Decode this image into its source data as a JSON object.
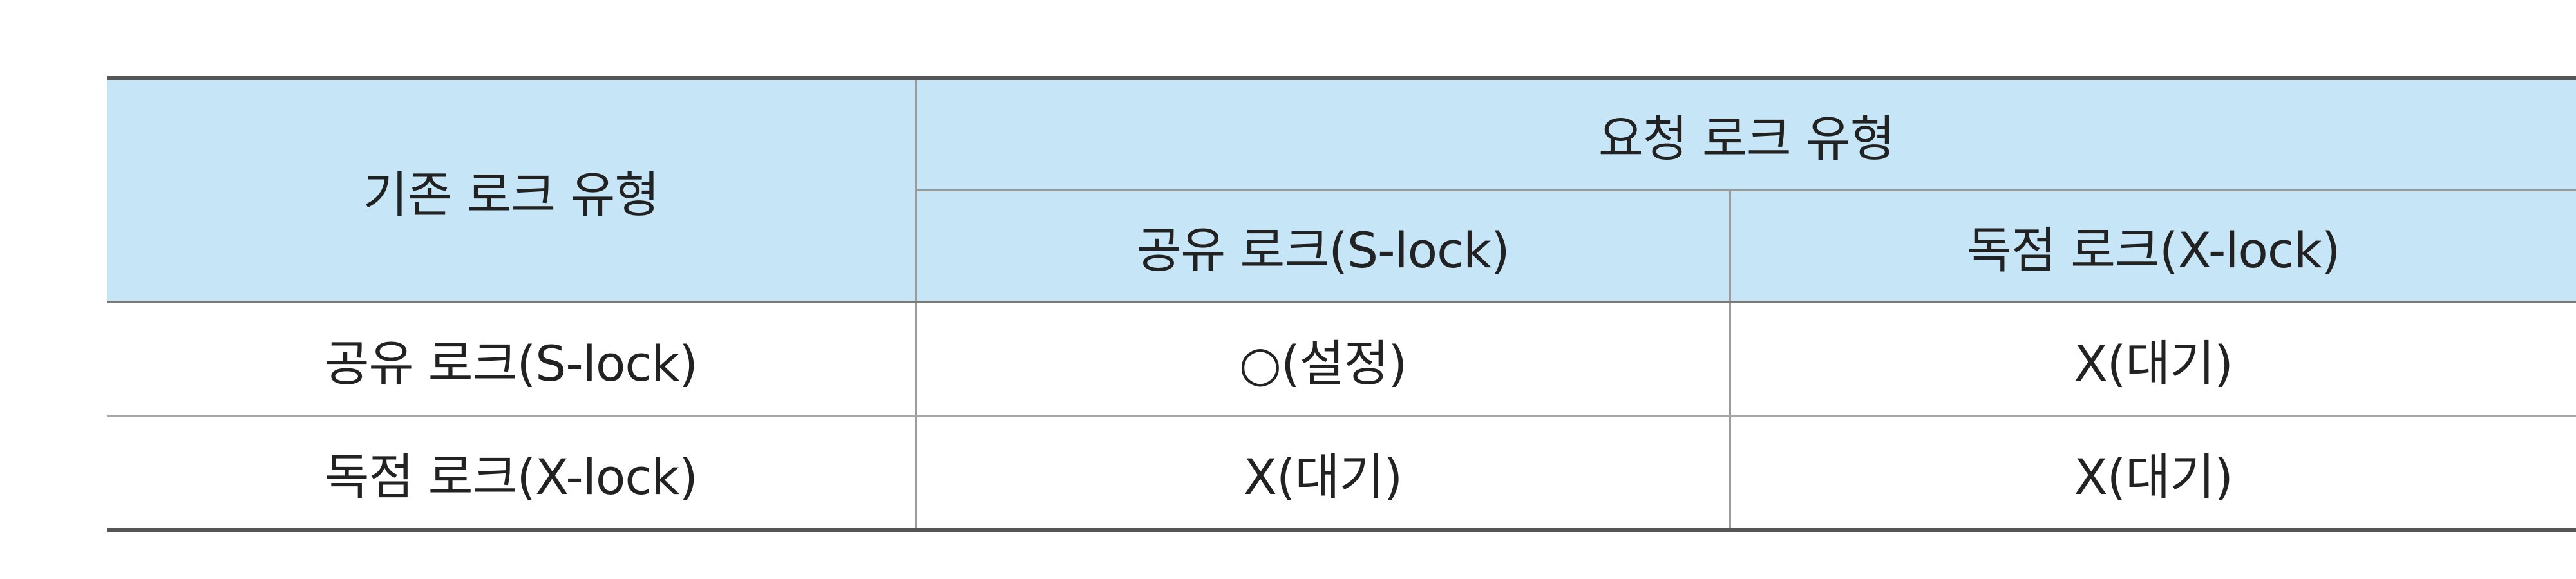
{
  "table": {
    "row_header_label": "기존 로크 유형",
    "group_header_label": "요청 로크 유형",
    "column_headers": [
      "공유 로크(S-lock)",
      "독점 로크(X-lock)"
    ],
    "rows": [
      {
        "label": "공유 로크(S-lock)",
        "cells": [
          "○(설정)",
          "X(대기)"
        ]
      },
      {
        "label": "독점 로크(X-lock)",
        "cells": [
          "X(대기)",
          "X(대기)"
        ]
      }
    ],
    "colors": {
      "header_background": "#c6e6f7",
      "border": "#555555"
    }
  }
}
